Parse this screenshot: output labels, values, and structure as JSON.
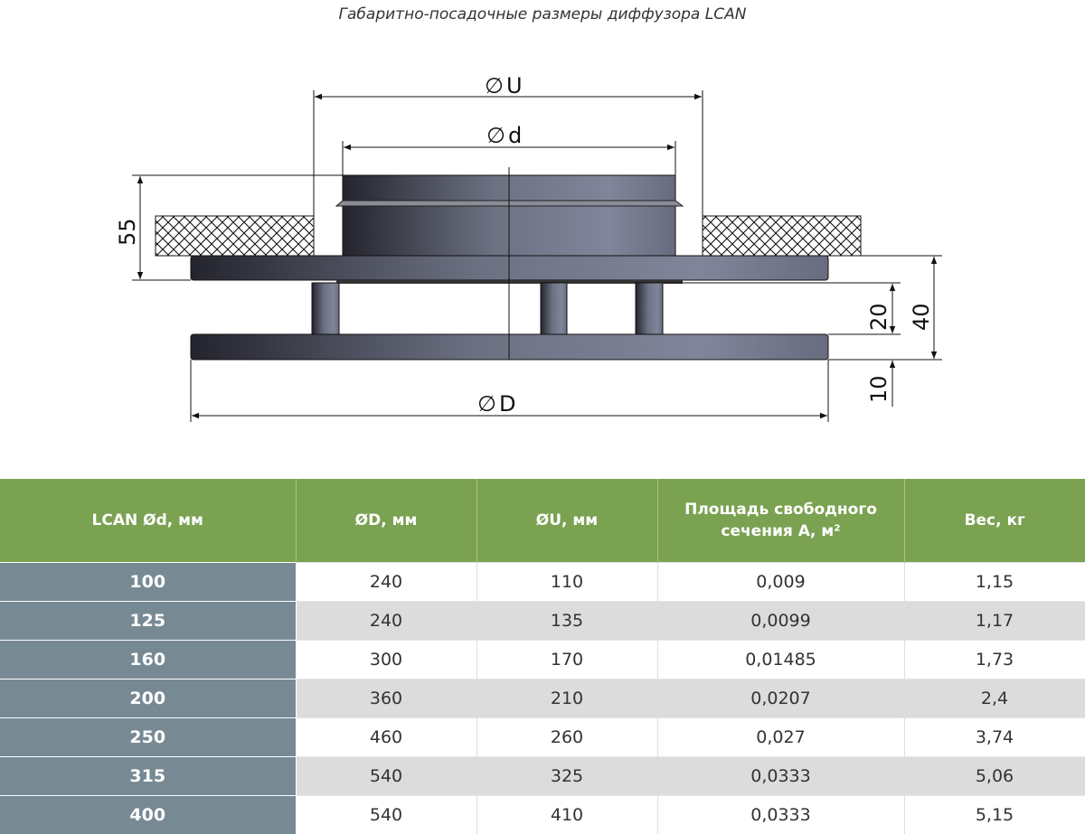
{
  "title": "Габаритно-посадочные размеры диффузора LCAN",
  "drawing": {
    "labels": {
      "U": "U",
      "d": "d",
      "D": "D",
      "h55": "55",
      "h20": "20",
      "h40": "40",
      "h10": "10"
    },
    "diameter_symbol": "∅",
    "colors": {
      "metal_dark": "#2b2b36",
      "metal_light": "#7d8292"
    }
  },
  "table": {
    "colors": {
      "header_bg": "#7aa251",
      "first_col_bg": "#778a94"
    },
    "headers": [
      "LCAN Ød, мм",
      "ØD, мм",
      "ØU, мм",
      "Площадь свободного сечения А, м²",
      "Вес, кг"
    ],
    "rows": [
      [
        "100",
        "240",
        "110",
        "0,009",
        "1,15"
      ],
      [
        "125",
        "240",
        "135",
        "0,0099",
        "1,17"
      ],
      [
        "160",
        "300",
        "170",
        "0,01485",
        "1,73"
      ],
      [
        "200",
        "360",
        "210",
        "0,0207",
        "2,4"
      ],
      [
        "250",
        "460",
        "260",
        "0,027",
        "3,74"
      ],
      [
        "315",
        "540",
        "325",
        "0,0333",
        "5,06"
      ],
      [
        "400",
        "540",
        "410",
        "0,0333",
        "5,15"
      ]
    ]
  }
}
